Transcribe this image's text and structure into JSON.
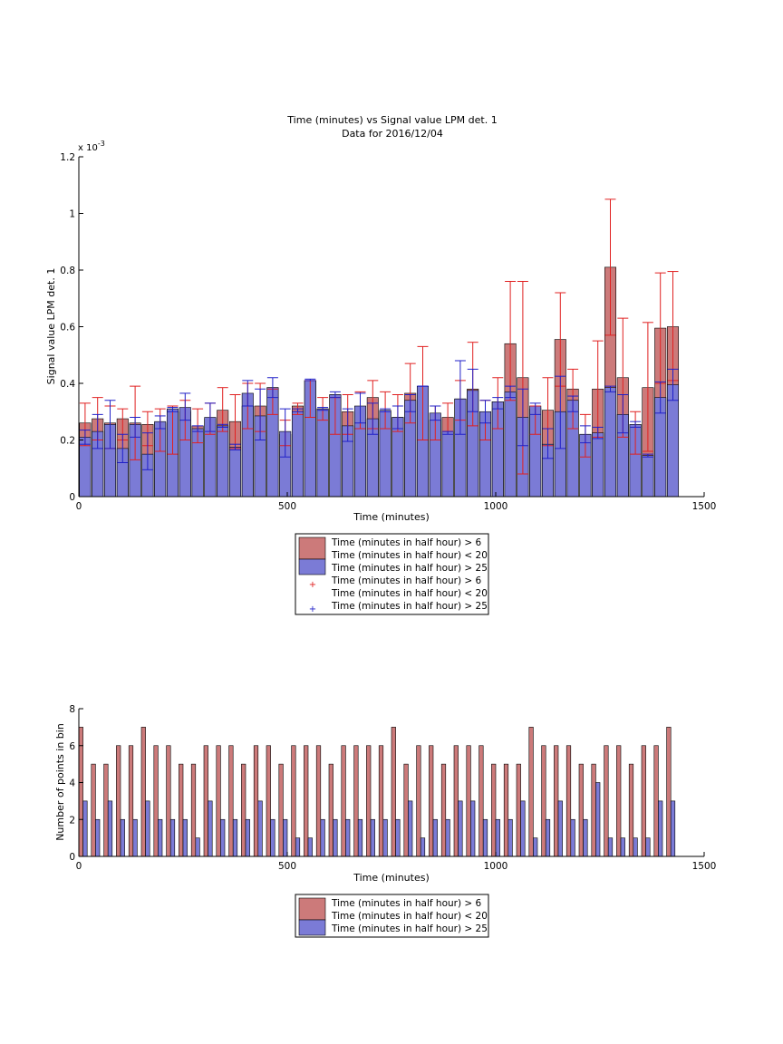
{
  "figure": {
    "title": "Time (minutes) vs Signal value LPM det. 1",
    "subtitle": "Data for 2016/12/04"
  },
  "chart_data": [
    {
      "type": "bar",
      "subtype": "overlaid bars with error bars",
      "xlabel": "Time (minutes)",
      "ylabel": "Signal value LPM det. 1",
      "y_exponent_label": "x 10",
      "y_exponent_power": "-3",
      "xlim": [
        0,
        1500
      ],
      "ylim": [
        0,
        0.0012
      ],
      "xticks": [
        "0",
        "500",
        "1000",
        "1500"
      ],
      "yticks": [
        "0",
        "0.2",
        "0.4",
        "0.6",
        "0.8",
        "1",
        "1.2"
      ],
      "grid": false,
      "legend_position": "below",
      "legend": [
        {
          "label": "Time (minutes in half hour) > 6\nTime (minutes in half hour) < 20",
          "kind": "patch",
          "color": "#cc7a7a"
        },
        {
          "label": "Time (minutes in half hour) > 25",
          "kind": "patch",
          "color": "#7b7bd6"
        },
        {
          "label": "Time (minutes in half hour) > 6\nTime (minutes in half hour) < 20",
          "kind": "marker",
          "color": "#e02020"
        },
        {
          "label": "Time (minutes in half hour) > 25",
          "kind": "marker",
          "color": "#2020c8"
        }
      ],
      "x": [
        15,
        45,
        75,
        105,
        135,
        165,
        195,
        225,
        255,
        285,
        315,
        345,
        375,
        405,
        435,
        465,
        495,
        525,
        555,
        585,
        615,
        645,
        675,
        705,
        735,
        765,
        795,
        825,
        855,
        885,
        915,
        945,
        975,
        1005,
        1035,
        1065,
        1095,
        1125,
        1155,
        1185,
        1215,
        1245,
        1275,
        1305,
        1335,
        1365,
        1395,
        1425
      ],
      "series": [
        {
          "name": "Time (minutes in half hour) > 6\nTime (minutes in half hour) < 20",
          "color": "#cc7a7a",
          "errorbar_color": "#e02020",
          "values": [
            0.26,
            0.275,
            0.26,
            0.275,
            0.26,
            0.255,
            0.26,
            0.305,
            0.3,
            0.25,
            0.275,
            0.305,
            0.265,
            0.32,
            0.32,
            0.385,
            0.22,
            0.32,
            0.41,
            0.31,
            0.36,
            0.3,
            0.3,
            0.35,
            0.3,
            0.28,
            0.365,
            0.365,
            0.27,
            0.28,
            0.345,
            0.38,
            0.295,
            0.335,
            0.54,
            0.42,
            0.31,
            0.305,
            0.555,
            0.38,
            0.22,
            0.38,
            0.81,
            0.42,
            0.255,
            0.385,
            0.595,
            0.6
          ],
          "err_low": [
            0.18,
            0.2,
            0.17,
            0.2,
            0.13,
            0.18,
            0.16,
            0.15,
            0.2,
            0.19,
            0.22,
            0.23,
            0.17,
            0.24,
            0.23,
            0.29,
            0.18,
            0.29,
            0.28,
            0.27,
            0.22,
            0.22,
            0.24,
            0.24,
            0.24,
            0.23,
            0.26,
            0.2,
            0.2,
            0.23,
            0.27,
            0.25,
            0.2,
            0.24,
            0.34,
            0.08,
            0.22,
            0.18,
            0.39,
            0.24,
            0.14,
            0.21,
            0.57,
            0.21,
            0.15,
            0.16,
            0.4,
            0.41
          ],
          "err_high": [
            0.33,
            0.35,
            0.32,
            0.31,
            0.39,
            0.3,
            0.31,
            0.32,
            0.34,
            0.31,
            0.33,
            0.385,
            0.36,
            0.4,
            0.4,
            0.38,
            0.27,
            0.33,
            0.41,
            0.35,
            0.35,
            0.36,
            0.37,
            0.41,
            0.37,
            0.36,
            0.47,
            0.53,
            0.32,
            0.33,
            0.41,
            0.545,
            0.34,
            0.42,
            0.76,
            0.76,
            0.32,
            0.42,
            0.72,
            0.45,
            0.29,
            0.55,
            1.05,
            0.63,
            0.3,
            0.615,
            0.79,
            0.795
          ],
          "values_unit_scale": 0.001
        },
        {
          "name": "Time (minutes in half hour) > 25",
          "color": "#7b7bd6",
          "errorbar_color": "#2020c8",
          "values": [
            0.21,
            0.23,
            0.255,
            0.17,
            0.255,
            0.15,
            0.265,
            0.31,
            0.315,
            0.24,
            0.28,
            0.25,
            0.175,
            0.365,
            0.285,
            0.385,
            0.23,
            0.3,
            0.41,
            0.31,
            0.36,
            0.25,
            0.32,
            0.275,
            0.305,
            0.28,
            0.34,
            0.39,
            0.295,
            0.23,
            0.345,
            0.375,
            0.3,
            0.335,
            0.37,
            0.28,
            0.32,
            0.185,
            0.3,
            0.34,
            0.22,
            0.225,
            0.385,
            0.29,
            0.255,
            0.145,
            0.35,
            0.395
          ],
          "err_low": [
            0.185,
            0.17,
            0.17,
            0.12,
            0.21,
            0.095,
            0.24,
            0.3,
            0.27,
            0.23,
            0.23,
            0.245,
            0.165,
            0.32,
            0.2,
            0.35,
            0.14,
            0.3,
            0.41,
            0.305,
            0.35,
            0.195,
            0.26,
            0.22,
            0.3,
            0.24,
            0.3,
            0.39,
            0.27,
            0.22,
            0.22,
            0.3,
            0.26,
            0.31,
            0.35,
            0.18,
            0.29,
            0.135,
            0.17,
            0.3,
            0.19,
            0.205,
            0.37,
            0.225,
            0.245,
            0.14,
            0.295,
            0.34
          ],
          "err_high": [
            0.235,
            0.29,
            0.34,
            0.22,
            0.28,
            0.225,
            0.285,
            0.315,
            0.365,
            0.25,
            0.33,
            0.255,
            0.185,
            0.41,
            0.38,
            0.42,
            0.31,
            0.31,
            0.415,
            0.315,
            0.37,
            0.31,
            0.365,
            0.33,
            0.31,
            0.32,
            0.36,
            0.39,
            0.32,
            0.23,
            0.48,
            0.45,
            0.34,
            0.35,
            0.39,
            0.38,
            0.33,
            0.24,
            0.425,
            0.355,
            0.25,
            0.245,
            0.39,
            0.36,
            0.265,
            0.15,
            0.405,
            0.45
          ],
          "values_unit_scale": 0.001
        }
      ]
    },
    {
      "type": "bar",
      "subtype": "grouped histogram",
      "xlabel": "Time (minutes)",
      "ylabel": "Number of points in bin",
      "xlim": [
        0,
        1500
      ],
      "ylim": [
        0,
        8
      ],
      "xticks": [
        "0",
        "500",
        "1000",
        "1500"
      ],
      "yticks": [
        "0",
        "2",
        "4",
        "6",
        "8"
      ],
      "grid": false,
      "legend_position": "below",
      "legend": [
        {
          "label": "Time (minutes in half hour) > 6\nTime (minutes in half hour) < 20",
          "kind": "patch",
          "color": "#cc7a7a"
        },
        {
          "label": "Time (minutes in half hour) > 25",
          "kind": "patch",
          "color": "#7b7bd6"
        }
      ],
      "x": [
        10,
        40,
        70,
        100,
        130,
        160,
        190,
        220,
        250,
        280,
        310,
        340,
        370,
        400,
        430,
        460,
        490,
        520,
        550,
        580,
        610,
        640,
        670,
        700,
        730,
        760,
        790,
        820,
        850,
        880,
        910,
        940,
        970,
        1000,
        1030,
        1060,
        1090,
        1120,
        1150,
        1180,
        1210,
        1240,
        1270,
        1300,
        1330,
        1360,
        1390,
        1420
      ],
      "series": [
        {
          "name": "Time (minutes in half hour) > 6\nTime (minutes in half hour) < 20",
          "color": "#cc7a7a",
          "values": [
            7,
            5,
            5,
            6,
            6,
            7,
            6,
            6,
            5,
            5,
            6,
            6,
            6,
            5,
            6,
            6,
            5,
            6,
            6,
            6,
            5,
            6,
            6,
            6,
            6,
            7,
            5,
            6,
            6,
            5,
            6,
            6,
            6,
            5,
            5,
            5,
            7,
            6,
            6,
            6,
            5,
            5,
            6,
            6,
            5,
            6,
            6,
            7
          ]
        },
        {
          "name": "Time (minutes in half hour) > 25",
          "color": "#7b7bd6",
          "values": [
            3,
            2,
            3,
            2,
            2,
            3,
            2,
            2,
            2,
            1,
            3,
            2,
            2,
            2,
            3,
            2,
            2,
            1,
            1,
            2,
            2,
            2,
            2,
            2,
            2,
            2,
            3,
            1,
            2,
            2,
            3,
            3,
            2,
            2,
            2,
            3,
            1,
            2,
            3,
            2,
            2,
            4,
            1,
            1,
            1,
            1,
            3,
            3
          ]
        }
      ]
    }
  ]
}
